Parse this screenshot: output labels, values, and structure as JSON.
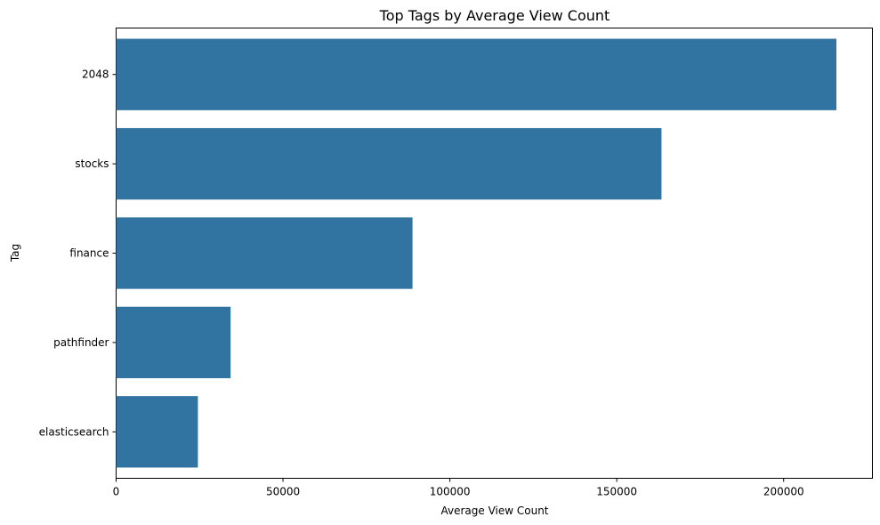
{
  "chart_data": {
    "type": "bar",
    "orientation": "horizontal",
    "title": "Top Tags by Average View Count",
    "xlabel": "Average View Count",
    "ylabel": "Tag",
    "categories": [
      "2048",
      "stocks",
      "finance",
      "pathfinder",
      "elasticsearch"
    ],
    "values": [
      215800,
      163400,
      88800,
      34300,
      24500
    ],
    "xlim": [
      0,
      226600
    ],
    "xticks": [
      0,
      50000,
      100000,
      150000,
      200000
    ],
    "xtick_labels": [
      "0",
      "50000",
      "100000",
      "150000",
      "200000"
    ],
    "grid": false,
    "bar_color": "#3274a1"
  }
}
